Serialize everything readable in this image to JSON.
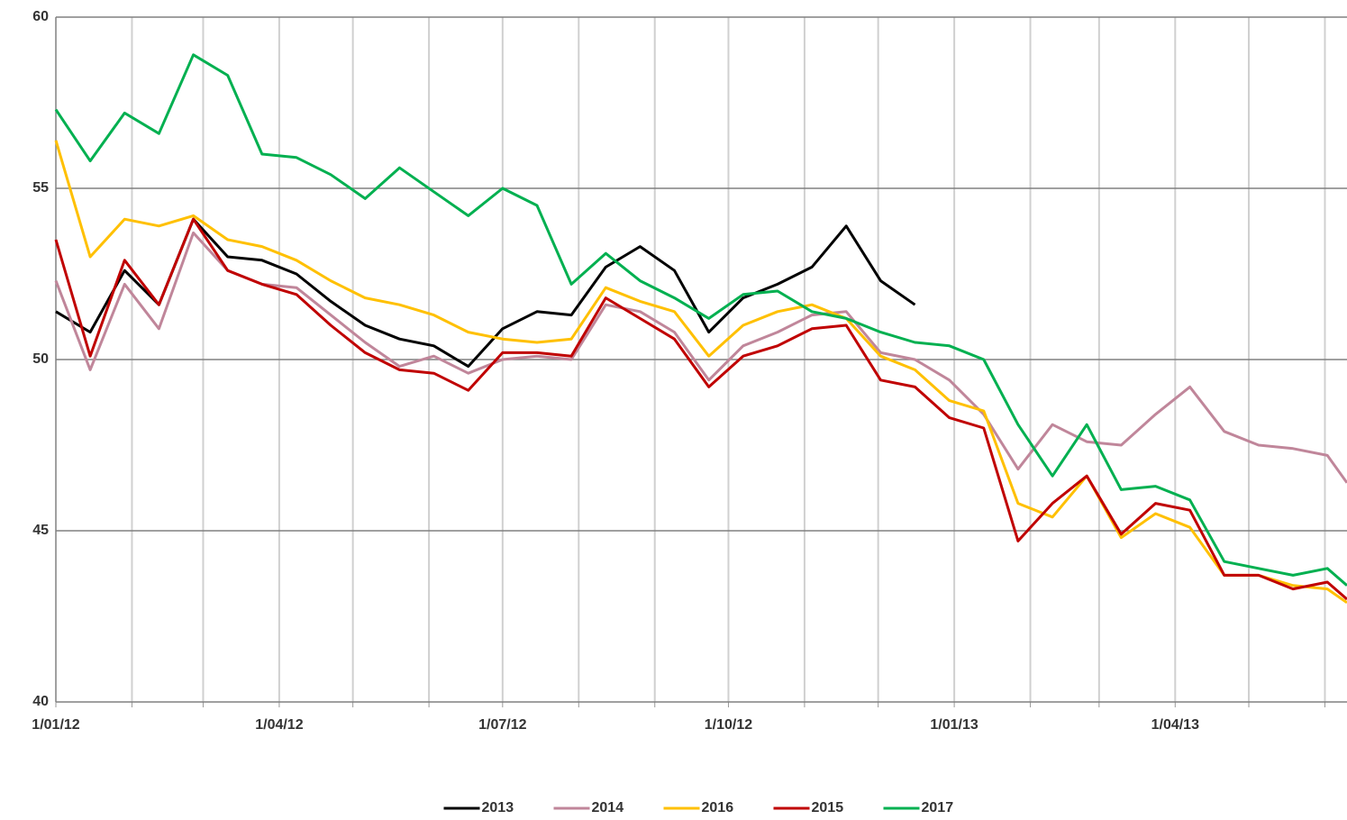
{
  "chart_data": {
    "type": "line",
    "x": [
      "1/01/12",
      "15/01/12",
      "29/01/12",
      "12/02/12",
      "26/02/12",
      "11/03/12",
      "25/03/12",
      "8/04/12",
      "22/04/12",
      "6/05/12",
      "20/05/12",
      "3/06/12",
      "17/06/12",
      "1/07/12",
      "15/07/12",
      "29/07/12",
      "12/08/12",
      "26/08/12",
      "9/09/12",
      "23/09/12",
      "7/10/12",
      "21/10/12",
      "4/11/12",
      "18/11/12",
      "2/12/12",
      "16/12/12",
      "30/12/12",
      "13/01/13",
      "27/01/13",
      "10/02/13",
      "24/02/13",
      "10/03/13",
      "24/03/13",
      "7/04/13",
      "21/04/13",
      "5/05/13",
      "19/05/13",
      "2/06/13",
      "10/06/13"
    ],
    "series": [
      {
        "name": "2013",
        "color": "#000000",
        "values": [
          51.4,
          50.8,
          52.6,
          51.6,
          54.1,
          53.0,
          52.9,
          52.5,
          51.7,
          51.0,
          50.6,
          50.4,
          49.8,
          50.9,
          51.4,
          51.3,
          52.7,
          53.3,
          52.6,
          50.8,
          51.8,
          52.2,
          52.7,
          53.9,
          52.3,
          51.6,
          null,
          null,
          null,
          null,
          null,
          null,
          null,
          null,
          null,
          null,
          null,
          null,
          null
        ]
      },
      {
        "name": "2014",
        "color": "#c0869a",
        "values": [
          52.3,
          49.7,
          52.2,
          50.9,
          53.7,
          52.6,
          52.2,
          52.1,
          51.3,
          50.5,
          49.8,
          50.1,
          49.6,
          50.0,
          50.1,
          50.0,
          51.6,
          51.4,
          50.8,
          49.4,
          50.4,
          50.8,
          51.3,
          51.4,
          50.2,
          50.0,
          49.4,
          48.4,
          46.8,
          48.1,
          47.6,
          47.5,
          48.4,
          49.2,
          47.9,
          47.5,
          47.4,
          47.2,
          46.4
        ]
      },
      {
        "name": "2016",
        "color": "#ffc000",
        "values": [
          56.4,
          53.0,
          54.1,
          53.9,
          54.2,
          53.5,
          53.3,
          52.9,
          52.3,
          51.8,
          51.6,
          51.3,
          50.8,
          50.6,
          50.5,
          50.6,
          52.1,
          51.7,
          51.4,
          50.1,
          51.0,
          51.4,
          51.6,
          51.2,
          50.1,
          49.7,
          48.8,
          48.5,
          45.8,
          45.4,
          46.6,
          44.8,
          45.5,
          45.1,
          43.7,
          43.7,
          43.4,
          43.3,
          42.9
        ]
      },
      {
        "name": "2015",
        "color": "#c00000",
        "values": [
          53.5,
          50.1,
          52.9,
          51.6,
          54.1,
          52.6,
          52.2,
          51.9,
          51.0,
          50.2,
          49.7,
          49.6,
          49.1,
          50.2,
          50.2,
          50.1,
          51.8,
          51.2,
          50.6,
          49.2,
          50.1,
          50.4,
          50.9,
          51.0,
          49.4,
          49.2,
          48.3,
          48.0,
          44.7,
          45.8,
          46.6,
          44.9,
          45.8,
          45.6,
          43.7,
          43.7,
          43.3,
          43.5,
          43.0
        ]
      },
      {
        "name": "2017",
        "color": "#00b050",
        "values": [
          57.3,
          55.8,
          57.2,
          56.6,
          58.9,
          58.3,
          56.0,
          55.9,
          55.4,
          54.7,
          55.6,
          54.9,
          54.2,
          55.0,
          54.5,
          52.2,
          53.1,
          52.3,
          51.8,
          51.2,
          51.9,
          52.0,
          51.4,
          51.2,
          50.8,
          50.5,
          50.4,
          50.0,
          48.1,
          46.6,
          48.1,
          46.2,
          46.3,
          45.9,
          44.1,
          43.9,
          43.7,
          43.9,
          43.4
        ]
      }
    ],
    "xlim": [
      "1/01/12",
      "10/06/13"
    ],
    "xticks": [
      "1/01/12",
      "1/04/12",
      "1/07/12",
      "1/10/12",
      "1/01/13",
      "1/04/13"
    ],
    "xminorticks": [
      "1/02/12",
      "1/03/12",
      "1/05/12",
      "1/06/12",
      "1/08/12",
      "1/09/12",
      "1/11/12",
      "1/12/12",
      "1/02/13",
      "1/03/13",
      "1/05/13",
      "1/06/13"
    ],
    "ylim": [
      40,
      60
    ],
    "yticks": [
      40,
      45,
      50,
      55,
      60
    ],
    "grid": true,
    "legend": "bottom"
  }
}
